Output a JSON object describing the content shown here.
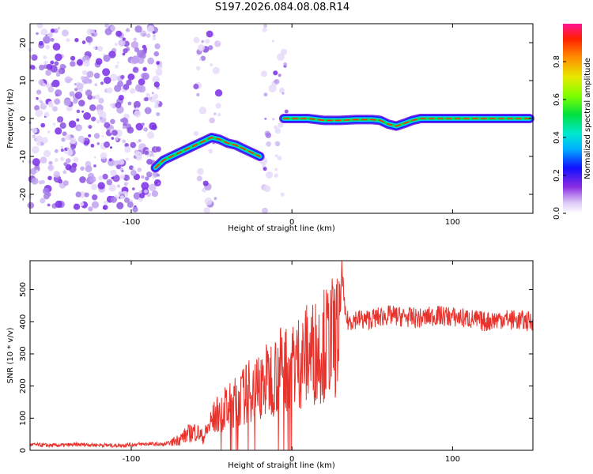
{
  "title": "S197.2026.084.08.08.R14",
  "colors": {
    "snr_line": "#e8322c",
    "frame": "#000000",
    "background": "#ffffff"
  },
  "chart_data": [
    {
      "type": "heatmap",
      "name": "spectrogram",
      "xlabel": "Height of straight line (km)",
      "ylabel": "Frequency (Hz)",
      "xlim": [
        -163,
        150
      ],
      "ylim": [
        -25,
        25
      ],
      "xticks": [
        -100,
        0,
        100
      ],
      "xtick_labels": [
        "-100",
        "0",
        "100"
      ],
      "yticks": [
        -20,
        -10,
        0,
        10,
        20
      ],
      "ytick_labels": [
        "-20",
        "-10",
        "0",
        "10",
        "20"
      ],
      "colorbar": {
        "label": "Normalized spectral amplitude",
        "range": [
          0,
          1
        ],
        "ticks": [
          0.0,
          0.2,
          0.4,
          0.6,
          0.8
        ],
        "tick_labels": [
          "0.0",
          "0.2",
          "0.4",
          "0.6",
          "0.8"
        ]
      },
      "noise_regions_km": [
        [
          -163,
          -82
        ],
        [
          -60,
          -45
        ],
        [
          -18,
          -3
        ]
      ],
      "ridge_segments": [
        {
          "x": [
            -85,
            -80,
            -75,
            -70,
            -65,
            -60,
            -55,
            -50,
            -45,
            -40,
            -35,
            -30,
            -25,
            -20
          ],
          "freq": [
            -13,
            -11,
            -10,
            -9,
            -8,
            -7,
            -6,
            -5,
            -5.5,
            -6.5,
            -7,
            -8,
            -9,
            -10
          ]
        },
        {
          "x": [
            -5,
            0,
            10,
            20,
            30,
            40,
            50,
            55,
            60,
            65,
            70,
            75,
            80,
            90,
            100,
            110,
            120,
            130,
            140,
            148
          ],
          "freq": [
            0,
            0,
            0,
            -0.5,
            -0.5,
            -0.3,
            -0.3,
            -0.5,
            -1.5,
            -2,
            -1.3,
            -0.5,
            0,
            0,
            0,
            0,
            0,
            0,
            0,
            0
          ]
        }
      ]
    },
    {
      "type": "line",
      "name": "snr",
      "xlabel": "Height of straight line (km)",
      "ylabel": "SNR (10 * v/v)",
      "xlim": [
        -163,
        150
      ],
      "ylim": [
        0,
        590
      ],
      "xticks": [
        -100,
        0,
        100
      ],
      "xtick_labels": [
        "-100",
        "0",
        "100"
      ],
      "yticks": [
        0,
        100,
        200,
        300,
        400,
        500
      ],
      "ytick_labels": [
        "0",
        "100",
        "200",
        "300",
        "400",
        "500"
      ],
      "series": [
        {
          "name": "SNR",
          "x": [
            -163,
            -150,
            -130,
            -110,
            -90,
            -80,
            -75,
            -70,
            -65,
            -60,
            -55,
            -50,
            -45,
            -40,
            -35,
            -30,
            -25,
            -20,
            -15,
            -10,
            -5,
            0,
            5,
            10,
            15,
            20,
            25,
            28,
            30,
            31,
            33,
            35,
            40,
            45,
            50,
            60,
            70,
            80,
            90,
            100,
            110,
            120,
            130,
            140,
            150
          ],
          "y": [
            18,
            15,
            18,
            15,
            20,
            18,
            25,
            35,
            50,
            60,
            40,
            90,
            120,
            130,
            150,
            170,
            190,
            200,
            220,
            240,
            260,
            270,
            280,
            300,
            310,
            330,
            350,
            355,
            380,
            585,
            420,
            400,
            410,
            405,
            410,
            420,
            415,
            410,
            420,
            415,
            410,
            400,
            410,
            405,
            400
          ]
        }
      ]
    }
  ]
}
